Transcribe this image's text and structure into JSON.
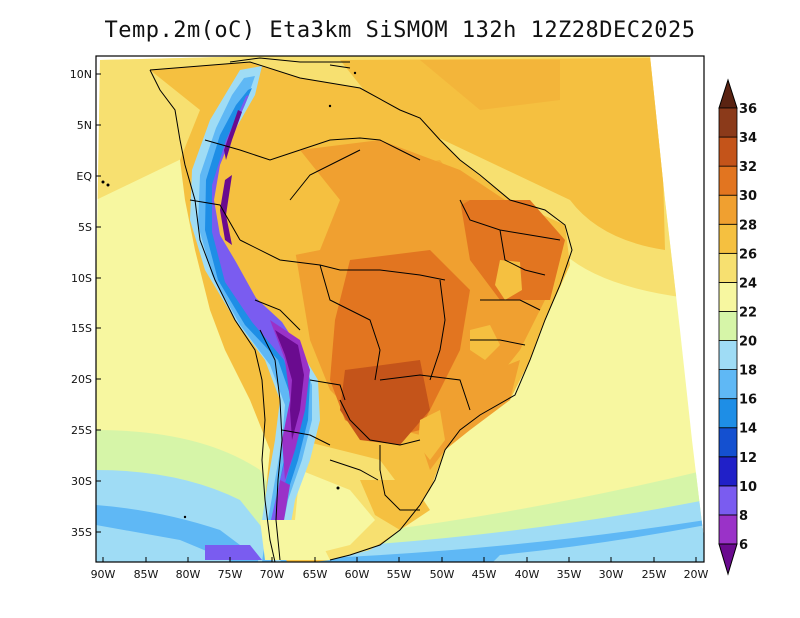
{
  "title": "Temp.2m(oC) Eta3km SiSMOM 132h 12Z28DEC2025",
  "map": {
    "lat_labels": [
      "10N",
      "5N",
      "EQ",
      "5S",
      "10S",
      "15S",
      "20S",
      "25S",
      "30S",
      "35S"
    ],
    "lon_labels": [
      "90W",
      "85W",
      "80W",
      "75W",
      "70W",
      "65W",
      "60W",
      "55W",
      "50W",
      "45W",
      "40W",
      "35W",
      "30W",
      "25W",
      "20W"
    ]
  },
  "colorbar": {
    "labels": [
      "6",
      "8",
      "10",
      "12",
      "14",
      "16",
      "18",
      "20",
      "22",
      "24",
      "26",
      "28",
      "30",
      "32",
      "34",
      "36"
    ],
    "colors": [
      "#6a0b8f",
      "#9a32c8",
      "#7a5cf0",
      "#2020c8",
      "#1450d0",
      "#1e8ee6",
      "#5fb8f5",
      "#9fdcf5",
      "#d6f5a8",
      "#f7f7a0",
      "#f7e070",
      "#f5c040",
      "#f0a030",
      "#e27520",
      "#c4541a",
      "#8b3a1a",
      "#5a2312"
    ]
  }
}
